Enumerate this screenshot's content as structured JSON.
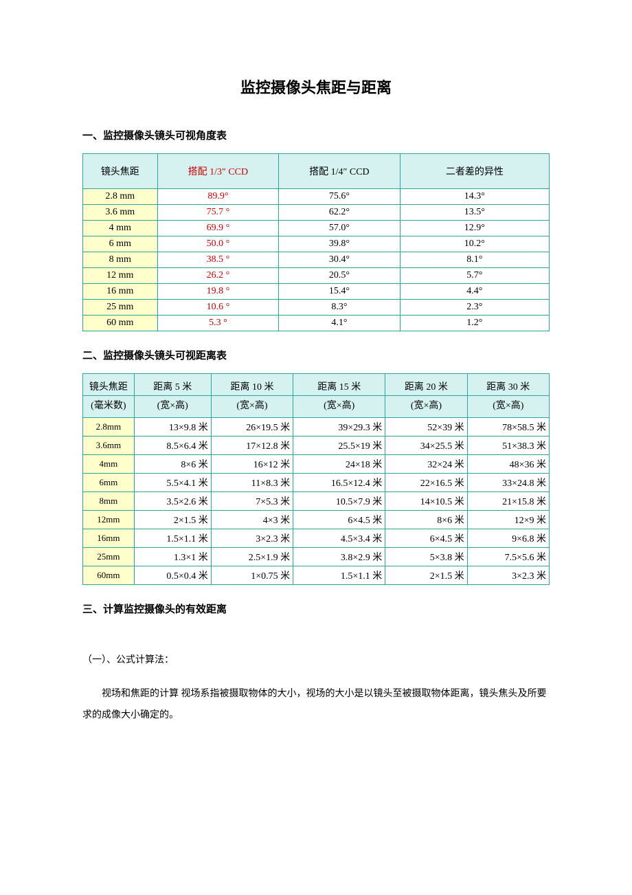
{
  "title": "监控摄像头焦距与距离",
  "section1": "一、监控摄像头镜头可视角度表",
  "table1": {
    "headers": [
      "镜头焦距",
      "搭配 1/3″ CCD",
      "搭配 1/4″ CCD",
      "二者差的异性"
    ],
    "rows": [
      [
        "2.8 mm",
        "89.9°",
        "75.6°",
        "14.3°"
      ],
      [
        "3.6 mm",
        "75.7 °",
        "62.2°",
        "13.5°"
      ],
      [
        "4 mm",
        "69.9 °",
        "57.0°",
        "12.9°"
      ],
      [
        "6 mm",
        "50.0 °",
        "39.8°",
        "10.2°"
      ],
      [
        "8 mm",
        "38.5 °",
        "30.4°",
        "8.1°"
      ],
      [
        "12 mm",
        "26.2 °",
        "20.5°",
        "5.7°"
      ],
      [
        "16 mm",
        "19.8 °",
        "15.4°",
        "4.4°"
      ],
      [
        "25 mm",
        "10.6 °",
        "8.3°",
        "2.3°"
      ],
      [
        "60 mm",
        "5.3 °",
        "4.1°",
        "1.2°"
      ]
    ]
  },
  "section2": "二、监控摄像头镜头可视距离表",
  "table2": {
    "headRow1": [
      "镜头焦距",
      "距离 5 米",
      "距离 10 米",
      "距离 15 米",
      "距离 20 米",
      "距离 30 米"
    ],
    "headRow2": [
      "(毫米数)",
      "(宽×高)",
      "(宽×高)",
      "(宽×高)",
      "(宽×高)",
      "(宽×高)"
    ],
    "rows": [
      [
        "2.8mm",
        "13×9.8 米",
        "26×19.5 米",
        "39×29.3 米",
        "52×39 米",
        "78×58.5 米"
      ],
      [
        "3.6mm",
        "8.5×6.4 米",
        "17×12.8 米",
        "25.5×19 米",
        "34×25.5 米",
        "51×38.3 米"
      ],
      [
        "4mm",
        "8×6 米",
        "16×12 米",
        "24×18 米",
        "32×24 米",
        "48×36 米"
      ],
      [
        "6mm",
        "5.5×4.1 米",
        "11×8.3 米",
        "16.5×12.4 米",
        "22×16.5 米",
        "33×24.8 米"
      ],
      [
        "8mm",
        "3.5×2.6 米",
        "7×5.3 米",
        "10.5×7.9 米",
        "14×10.5 米",
        "21×15.8 米"
      ],
      [
        "12mm",
        "2×1.5 米",
        "4×3 米",
        "6×4.5 米",
        "8×6 米",
        "12×9 米"
      ],
      [
        "16mm",
        "1.5×1.1 米",
        "3×2.3 米",
        "4.5×3.4 米",
        "6×4.5 米",
        "9×6.8 米"
      ],
      [
        "25mm",
        "1.3×1 米",
        "2.5×1.9 米",
        "3.8×2.9 米",
        "5×3.8 米",
        "7.5×5.6 米"
      ],
      [
        "60mm",
        "0.5×0.4 米",
        "1×0.75 米",
        "1.5×1.1 米",
        "2×1.5 米",
        "3×2.3 米"
      ]
    ]
  },
  "section3": "三、计算监控摄像头的有效距离",
  "para1": "（一）、公式计算法：",
  "para2": "视场和焦距的计算 视场系指被摄取物体的大小，视场的大小是以镜头至被摄取物体距离，镜头焦头及所要求的成像大小确定的。",
  "style": {
    "border": "#2aa59c",
    "headerBg": "#d6f2f0",
    "firstColBg": "#ffffcc",
    "redText": "#cc0000"
  }
}
